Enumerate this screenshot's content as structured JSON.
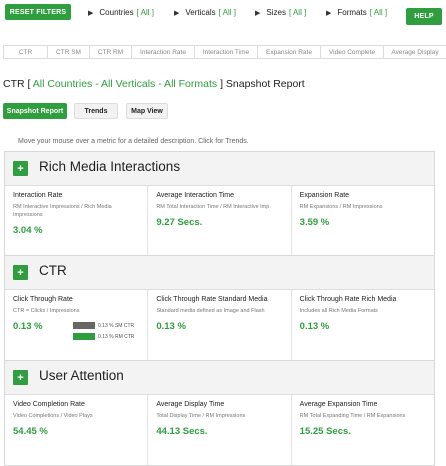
{
  "topbar": {
    "reset_label": "RESET FILTERS",
    "help_label": "HELP",
    "filters": [
      {
        "label": "Countries",
        "value": "[ All ]"
      },
      {
        "label": "Verticals",
        "value": "[ All ]"
      },
      {
        "label": "Sizes",
        "value": "[ All ]"
      },
      {
        "label": "Formats",
        "value": "[ All ]"
      }
    ]
  },
  "tabs": [
    "CTR",
    "CTR SM",
    "CTR RM",
    "Interaction Rate",
    "Interaction Time",
    "Expansion Rate",
    "Video Complete",
    "Average Display"
  ],
  "report_title": {
    "prefix": "CTR [ ",
    "filters": "All Countries - All Verticals - All Formats",
    "suffix": " ] Snapshot Report"
  },
  "views": [
    "Snapshot Report",
    "Trends",
    "Map View"
  ],
  "hint": "Move your mouse over a metric for a detailed description. Click for Trends.",
  "sections": [
    {
      "title": "Rich Media Interactions",
      "metrics": [
        {
          "name": "Interaction Rate",
          "desc": "RM Interactive Impressions / Rich Media Impressions",
          "value": "3.04 %"
        },
        {
          "name": "Average Interaction Time",
          "desc": "RM Total Interaction Time / RM Interactive Imp.",
          "value": "9.27 Secs."
        },
        {
          "name": "Expansion Rate",
          "desc": "RM Expansions / RM Impressions",
          "value": "3.59 %"
        }
      ]
    },
    {
      "title": "CTR",
      "metrics": [
        {
          "name": "Click Through Rate",
          "desc": "CTR = Clicks / Impressions",
          "value": "0.13 %",
          "bars": [
            {
              "label": "0.13 % SM CTR",
              "color": "#666666"
            },
            {
              "label": "0.13 % RM CTR",
              "color": "#2e9e3e"
            }
          ]
        },
        {
          "name": "Click Through Rate Standard Media",
          "desc": "Standard media defined as Image and Flash",
          "value": "0.13 %"
        },
        {
          "name": "Click Through Rate Rich Media",
          "desc": "Includes all Rich Media Formats",
          "value": "0.13 %"
        }
      ]
    },
    {
      "title": "User Attention",
      "metrics": [
        {
          "name": "Video Completion Rate",
          "desc": "Video Completions / Video Plays",
          "value": "54.45 %"
        },
        {
          "name": "Average Display Time",
          "desc": "Total Display Time / RM Impressions",
          "value": "44.13 Secs."
        },
        {
          "name": "Average Expansion Time",
          "desc": "RM Total Expanding Time / RM Expansions",
          "value": "15.25 Secs."
        }
      ]
    }
  ]
}
